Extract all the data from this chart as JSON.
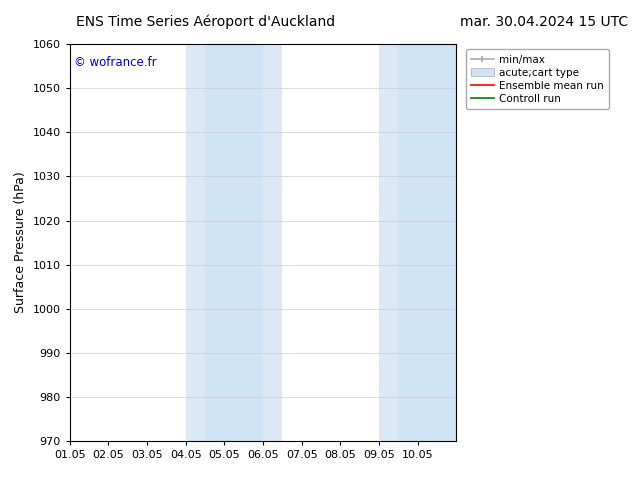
{
  "title_left": "ENS Time Series Aéroport d'Auckland",
  "title_right": "mar. 30.04.2024 15 UTC",
  "ylabel": "Surface Pressure (hPa)",
  "watermark": "© wofrance.fr",
  "watermark_color": "#0000cc",
  "xlim_start": 0,
  "xlim_end": 10,
  "ylim": [
    970,
    1060
  ],
  "yticks": [
    970,
    980,
    990,
    1000,
    1010,
    1020,
    1030,
    1040,
    1050,
    1060
  ],
  "xtick_labels": [
    "01.05",
    "02.05",
    "03.05",
    "04.05",
    "05.05",
    "06.05",
    "07.05",
    "08.05",
    "09.05",
    "10.05"
  ],
  "xtick_positions": [
    0,
    1,
    2,
    3,
    4,
    5,
    6,
    7,
    8,
    9
  ],
  "bg_color": "#ffffff",
  "plot_bg_color": "#ffffff",
  "shaded_regions": [
    {
      "xmin": 3.0,
      "xmax": 3.5,
      "color": "#dce8f5"
    },
    {
      "xmin": 3.5,
      "xmax": 5.0,
      "color": "#d0e4f5"
    },
    {
      "xmin": 5.0,
      "xmax": 5.5,
      "color": "#dce8f5"
    },
    {
      "xmin": 8.0,
      "xmax": 8.5,
      "color": "#dce8f5"
    },
    {
      "xmin": 8.5,
      "xmax": 10.0,
      "color": "#d0e4f5"
    },
    {
      "xmin": 10.0,
      "xmax": 10.5,
      "color": "#dce8f5"
    }
  ],
  "legend_items": [
    {
      "label": "min/max"
    },
    {
      "label": "acute;cart type"
    },
    {
      "label": "Ensemble mean run"
    },
    {
      "label": "Controll run"
    }
  ],
  "grid_color": "#cccccc",
  "title_fontsize": 10,
  "tick_fontsize": 8,
  "ylabel_fontsize": 9,
  "legend_fontsize": 7.5
}
